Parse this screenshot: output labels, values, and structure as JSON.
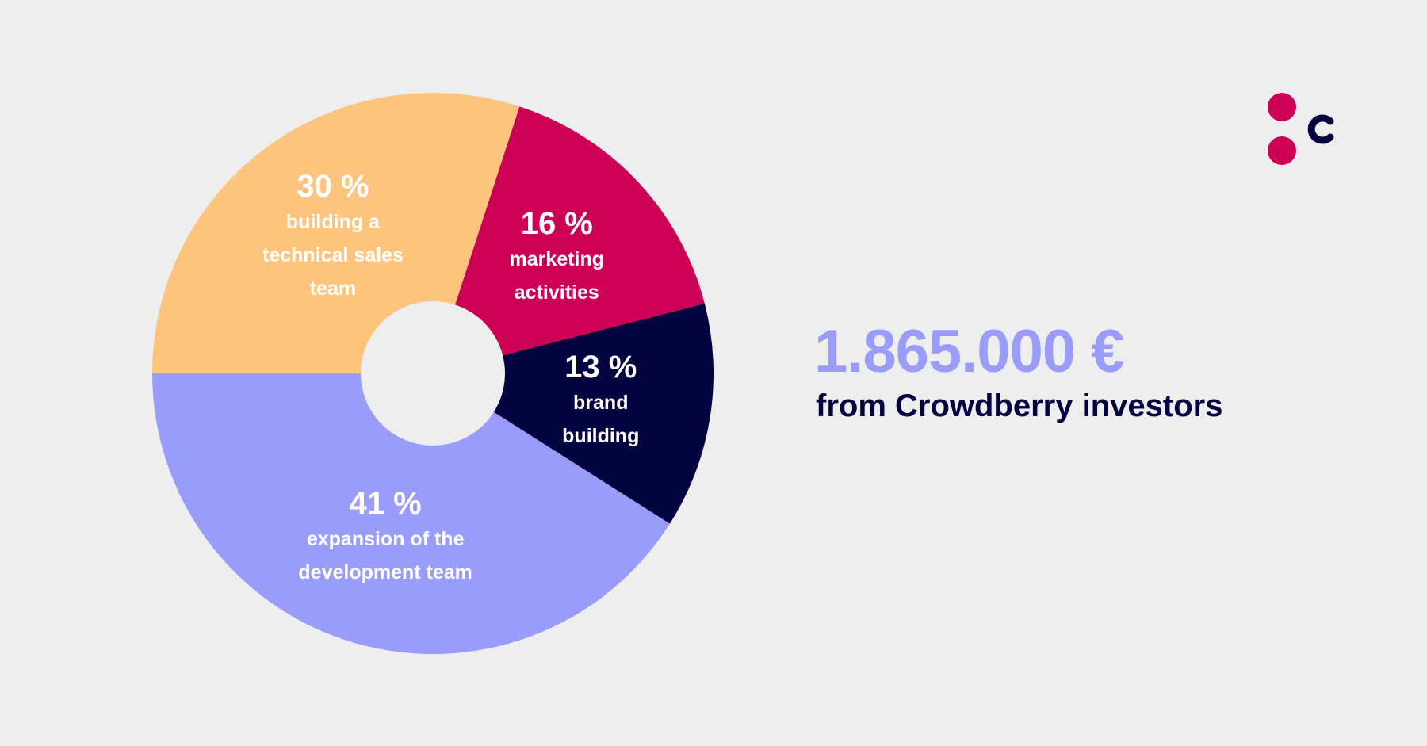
{
  "chart_data": {
    "type": "pie",
    "categories": [
      "building a technical sales team",
      "marketing activities",
      "brand building",
      "expansion of the development team"
    ],
    "values": [
      30,
      16,
      13,
      41
    ],
    "value_labels": [
      "30 %",
      "16 %",
      "13 %",
      "41 %"
    ],
    "colors": [
      "#fdc47e",
      "#cc0055",
      "#03033f",
      "#999cf8"
    ],
    "donut": true
  },
  "highlight": {
    "amount": "1.865.000 €",
    "caption": "from Crowdberry investors"
  }
}
